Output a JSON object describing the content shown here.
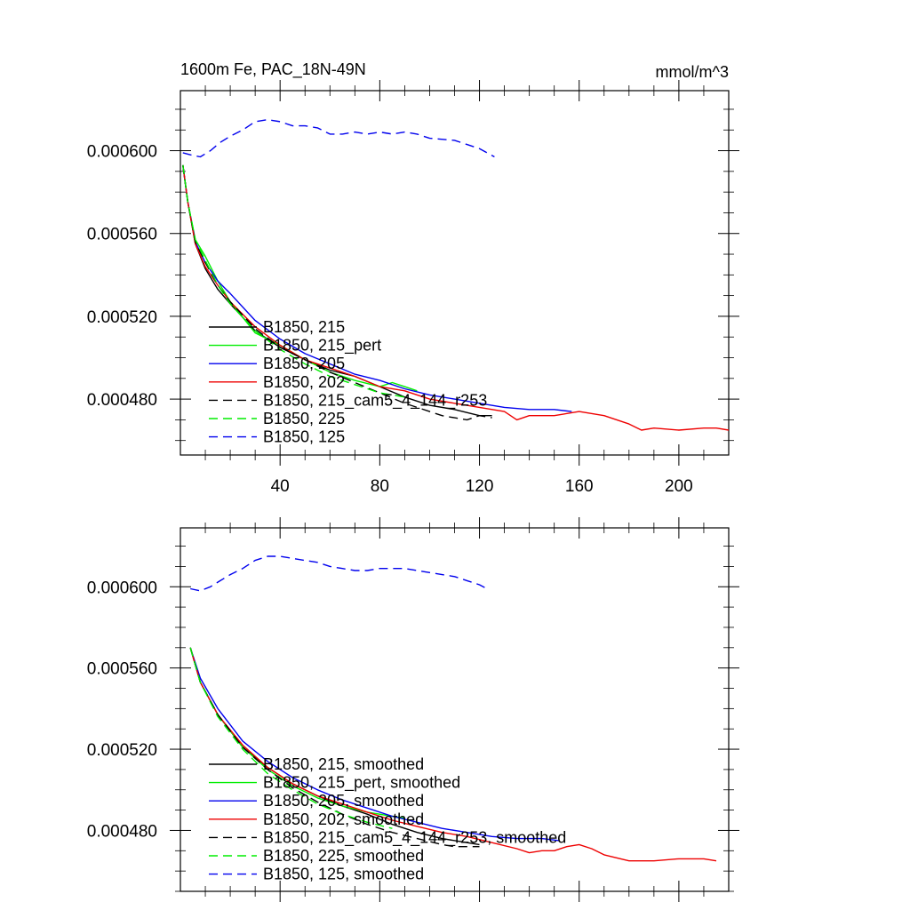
{
  "chart_data": [
    {
      "type": "line",
      "title": "1600m Fe, PAC_18N-49N",
      "units": "mmol/m^3",
      "xlim": [
        0,
        220
      ],
      "ylim": [
        0.000453,
        0.000629
      ],
      "xticks": [
        40,
        80,
        120,
        160,
        200
      ],
      "xtick_labels": [
        "40",
        "80",
        "120",
        "160",
        "200"
      ],
      "yticks": [
        0.00048,
        0.00052,
        0.00056,
        0.0006
      ],
      "ytick_labels": [
        "0.000480",
        "0.000520",
        "0.000560",
        "0.000600"
      ],
      "series": [
        {
          "name": "B1850, 215",
          "color": "#000000",
          "dash": "solid",
          "x": [
            1,
            3,
            6,
            10,
            15,
            20,
            30,
            40,
            50,
            60,
            70,
            80,
            90,
            100,
            110,
            120,
            125
          ],
          "y": [
            0.000593,
            0.000575,
            0.000555,
            0.000543,
            0.000533,
            0.000526,
            0.000513,
            0.000505,
            0.000499,
            0.000494,
            0.000491,
            0.000486,
            0.000481,
            0.000477,
            0.000475,
            0.000472,
            0.000472
          ]
        },
        {
          "name": "B1850, 215_pert",
          "color": "#00ee00",
          "dash": "solid",
          "x": [
            1,
            3,
            6,
            10,
            15,
            20,
            30,
            40,
            50,
            60,
            70,
            80,
            85,
            90,
            95
          ],
          "y": [
            0.000593,
            0.000575,
            0.000557,
            0.000549,
            0.000537,
            0.000527,
            0.000512,
            0.000506,
            0.000499,
            0.000493,
            0.000489,
            0.000486,
            0.000488,
            0.000486,
            0.000484
          ]
        },
        {
          "name": "B1850, 205",
          "color": "#0000ee",
          "dash": "solid",
          "x": [
            1,
            3,
            6,
            10,
            15,
            20,
            30,
            40,
            50,
            60,
            70,
            80,
            90,
            100,
            110,
            120,
            130,
            140,
            150,
            157
          ],
          "y": [
            0.000593,
            0.000575,
            0.000556,
            0.000546,
            0.000537,
            0.000531,
            0.000518,
            0.000509,
            0.000502,
            0.000497,
            0.000492,
            0.000489,
            0.000485,
            0.000482,
            0.00048,
            0.000478,
            0.000476,
            0.000475,
            0.000475,
            0.000474
          ]
        },
        {
          "name": "B1850, 202",
          "color": "#ee0000",
          "dash": "solid",
          "x": [
            1,
            3,
            6,
            10,
            15,
            20,
            30,
            40,
            50,
            60,
            70,
            80,
            90,
            100,
            110,
            120,
            130,
            135,
            140,
            150,
            160,
            170,
            180,
            185,
            190,
            200,
            210,
            215,
            220
          ],
          "y": [
            0.000593,
            0.000575,
            0.000555,
            0.000544,
            0.000535,
            0.000527,
            0.000515,
            0.000506,
            0.000499,
            0.000495,
            0.000491,
            0.000486,
            0.000484,
            0.00048,
            0.000478,
            0.000476,
            0.000474,
            0.00047,
            0.000472,
            0.000472,
            0.000474,
            0.000472,
            0.000468,
            0.000465,
            0.000466,
            0.000465,
            0.000466,
            0.000466,
            0.000465
          ]
        },
        {
          "name": "B1850, 215_cam5_4_144_r253",
          "color": "#000000",
          "dash": "10,6",
          "x": [
            1,
            3,
            6,
            10,
            15,
            20,
            30,
            40,
            50,
            60,
            70,
            80,
            90,
            100,
            105,
            110,
            115,
            120,
            125
          ],
          "y": [
            0.000593,
            0.000575,
            0.000556,
            0.000546,
            0.000535,
            0.000527,
            0.000514,
            0.000505,
            0.000499,
            0.000493,
            0.000488,
            0.000483,
            0.000478,
            0.000474,
            0.000472,
            0.000471,
            0.00047,
            0.000472,
            0.000471
          ]
        },
        {
          "name": "B1850, 225",
          "color": "#00ee00",
          "dash": "10,6",
          "x": [
            1,
            3,
            6,
            10,
            15,
            20,
            30,
            40,
            50,
            60,
            70,
            80,
            85,
            90
          ],
          "y": [
            0.000593,
            0.000575,
            0.000557,
            0.000547,
            0.000535,
            0.000526,
            0.000513,
            0.000504,
            0.000497,
            0.000491,
            0.000487,
            0.000483,
            0.000482,
            0.000481
          ]
        },
        {
          "name": "B1850, 125",
          "color": "#0000ee",
          "dash": "10,6",
          "x": [
            1,
            4,
            8,
            12,
            16,
            20,
            25,
            30,
            35,
            40,
            45,
            50,
            55,
            60,
            65,
            70,
            75,
            80,
            85,
            90,
            95,
            100,
            110,
            115,
            120,
            126
          ],
          "y": [
            0.000599,
            0.000598,
            0.000597,
            0.0006,
            0.000604,
            0.000607,
            0.00061,
            0.000614,
            0.000615,
            0.000614,
            0.000612,
            0.000612,
            0.000611,
            0.000608,
            0.000608,
            0.000609,
            0.000608,
            0.000609,
            0.000608,
            0.000609,
            0.000608,
            0.000606,
            0.000605,
            0.000603,
            0.000601,
            0.000597
          ]
        }
      ]
    },
    {
      "type": "line",
      "title": "",
      "units": "",
      "xlim": [
        0,
        220
      ],
      "ylim": [
        0.00045,
        0.000629
      ],
      "xticks": [
        40,
        80,
        120,
        160,
        200
      ],
      "xtick_labels": [],
      "yticks": [
        0.00048,
        0.00052,
        0.00056,
        0.0006
      ],
      "ytick_labels": [
        "0.000480",
        "0.000520",
        "0.000560",
        "0.000600"
      ],
      "series": [
        {
          "name": "B1850, 215, smoothed",
          "color": "#000000",
          "dash": "solid",
          "x": [
            4,
            8,
            15,
            25,
            35,
            45,
            55,
            65,
            75,
            85,
            95,
            105,
            115,
            120
          ],
          "y": [
            0.00057,
            0.000553,
            0.000537,
            0.000521,
            0.000511,
            0.000503,
            0.000497,
            0.000492,
            0.000488,
            0.000483,
            0.000479,
            0.000476,
            0.000474,
            0.000473
          ]
        },
        {
          "name": "B1850, 215_pert, smoothed",
          "color": "#00ee00",
          "dash": "solid",
          "x": [
            4,
            8,
            15,
            25,
            35,
            45,
            55,
            65,
            75,
            85,
            90
          ],
          "y": [
            0.00057,
            0.000553,
            0.000537,
            0.000521,
            0.00051,
            0.000502,
            0.000496,
            0.000492,
            0.000489,
            0.000487,
            0.000486
          ]
        },
        {
          "name": "B1850, 205, smoothed",
          "color": "#0000ee",
          "dash": "solid",
          "x": [
            4,
            8,
            15,
            25,
            35,
            45,
            55,
            65,
            75,
            85,
            95,
            105,
            115,
            125,
            135,
            145,
            152
          ],
          "y": [
            0.00057,
            0.000555,
            0.00054,
            0.000524,
            0.000514,
            0.000506,
            0.0005,
            0.000495,
            0.000491,
            0.000487,
            0.000484,
            0.000481,
            0.000479,
            0.000477,
            0.000476,
            0.000476,
            0.000475
          ]
        },
        {
          "name": "B1850, 202, smoothed",
          "color": "#ee0000",
          "dash": "solid",
          "x": [
            4,
            8,
            15,
            25,
            35,
            45,
            55,
            65,
            75,
            85,
            95,
            105,
            115,
            125,
            135,
            140,
            145,
            150,
            155,
            160,
            165,
            170,
            180,
            190,
            200,
            210,
            215
          ],
          "y": [
            0.00057,
            0.000553,
            0.000537,
            0.000522,
            0.000511,
            0.000503,
            0.000497,
            0.000493,
            0.000489,
            0.000485,
            0.000482,
            0.000479,
            0.000477,
            0.000474,
            0.000471,
            0.000469,
            0.00047,
            0.00047,
            0.000472,
            0.000473,
            0.000471,
            0.000468,
            0.000465,
            0.000465,
            0.000466,
            0.000466,
            0.000465
          ]
        },
        {
          "name": "B1850, 215_cam5_4_144_r253, smoothed",
          "color": "#000000",
          "dash": "10,6",
          "x": [
            4,
            8,
            15,
            25,
            35,
            45,
            55,
            65,
            75,
            85,
            95,
            105,
            110,
            115,
            120
          ],
          "y": [
            0.00057,
            0.000553,
            0.000537,
            0.000521,
            0.00051,
            0.000501,
            0.000494,
            0.000488,
            0.000483,
            0.000479,
            0.000476,
            0.000473,
            0.000472,
            0.000472,
            0.000472
          ]
        },
        {
          "name": "B1850, 225, smoothed",
          "color": "#00ee00",
          "dash": "10,6",
          "x": [
            4,
            8,
            15,
            25,
            35,
            45,
            55,
            65,
            75,
            85
          ],
          "y": [
            0.00057,
            0.000553,
            0.000536,
            0.00052,
            0.000508,
            0.0005,
            0.000493,
            0.000488,
            0.000484,
            0.000481
          ]
        },
        {
          "name": "B1850, 125, smoothed",
          "color": "#0000ee",
          "dash": "10,6",
          "x": [
            4,
            8,
            12,
            16,
            20,
            25,
            30,
            35,
            40,
            45,
            50,
            55,
            60,
            65,
            70,
            75,
            80,
            85,
            90,
            95,
            100,
            110,
            115,
            120,
            123
          ],
          "y": [
            0.000599,
            0.000598,
            0.0006,
            0.000603,
            0.000606,
            0.000609,
            0.000613,
            0.000615,
            0.000615,
            0.000614,
            0.000613,
            0.000612,
            0.00061,
            0.000609,
            0.000608,
            0.000608,
            0.000609,
            0.000609,
            0.000609,
            0.000608,
            0.000607,
            0.000605,
            0.000603,
            0.000601,
            0.000599
          ]
        }
      ]
    }
  ]
}
